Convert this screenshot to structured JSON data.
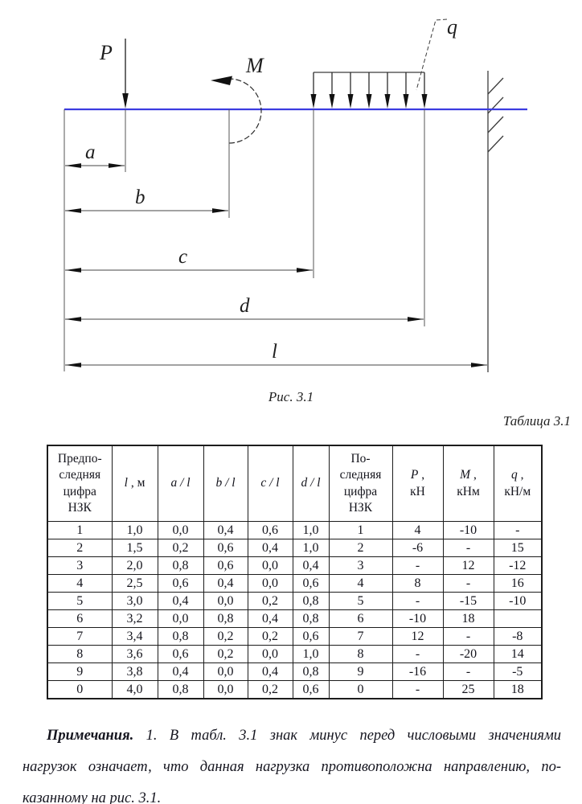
{
  "figure": {
    "caption": "Рис. 3.1",
    "labels": {
      "P": "P",
      "M": "M",
      "q": "q",
      "a": "a",
      "b": "b",
      "c": "c",
      "d": "d",
      "l": "l"
    },
    "colors": {
      "beam": "#3c3ce0",
      "lines": "#3c3c3c"
    }
  },
  "table": {
    "label": "Таблица 3.1",
    "header": {
      "col_nzk2": "Предпо-\nследняя\nцифра\nНЗК",
      "col_l_sym": "l",
      "col_l_unit": " , м",
      "col_al": "a / l",
      "col_bl": "b / l",
      "col_cl": "c / l",
      "col_dl": "d / l",
      "col_nzk1": "По-\nследняя\nцифра\nНЗК",
      "col_P_sym": "P",
      "col_P_comma": " ,",
      "col_P_unit": "кН",
      "col_M_sym": "M",
      "col_M_comma": " ,",
      "col_M_unit": "кНм",
      "col_q_sym": "q",
      "col_q_comma": " ,",
      "col_q_unit": "кН/м"
    },
    "rows": [
      [
        "1",
        "1,0",
        "0,0",
        "0,4",
        "0,6",
        "1,0",
        "1",
        "4",
        "-10",
        "-"
      ],
      [
        "2",
        "1,5",
        "0,2",
        "0,6",
        "0,4",
        "1,0",
        "2",
        "-6",
        "-",
        "15"
      ],
      [
        "3",
        "2,0",
        "0,8",
        "0,6",
        "0,0",
        "0,4",
        "3",
        "-",
        "12",
        "-12"
      ],
      [
        "4",
        "2,5",
        "0,6",
        "0,4",
        "0,0",
        "0,6",
        "4",
        "8",
        "-",
        "16"
      ],
      [
        "5",
        "3,0",
        "0,4",
        "0,0",
        "0,2",
        "0,8",
        "5",
        "-",
        "-15",
        "-10"
      ],
      [
        "6",
        "3,2",
        "0,0",
        "0,8",
        "0,4",
        "0,8",
        "6",
        "-10",
        "18",
        ""
      ],
      [
        "7",
        "3,4",
        "0,8",
        "0,2",
        "0,2",
        "0,6",
        "7",
        "12",
        "-",
        "-8"
      ],
      [
        "8",
        "3,6",
        "0,6",
        "0,2",
        "0,0",
        "1,0",
        "8",
        "-",
        "-20",
        "14"
      ],
      [
        "9",
        "3,8",
        "0,4",
        "0,0",
        "0,4",
        "0,8",
        "9",
        "-16",
        "-",
        "-5"
      ],
      [
        "0",
        "4,0",
        "0,8",
        "0,0",
        "0,2",
        "0,6",
        "0",
        "-",
        "25",
        "18"
      ]
    ]
  },
  "notes": {
    "label": "Примечания.",
    "line1_rest": "1. В табл. 3.1 знак минус перед числовыми значениями",
    "line2": "нагрузок означает, что данная нагрузка противоположна направлению, по-",
    "line3": "казанному на рис. 3.1."
  }
}
